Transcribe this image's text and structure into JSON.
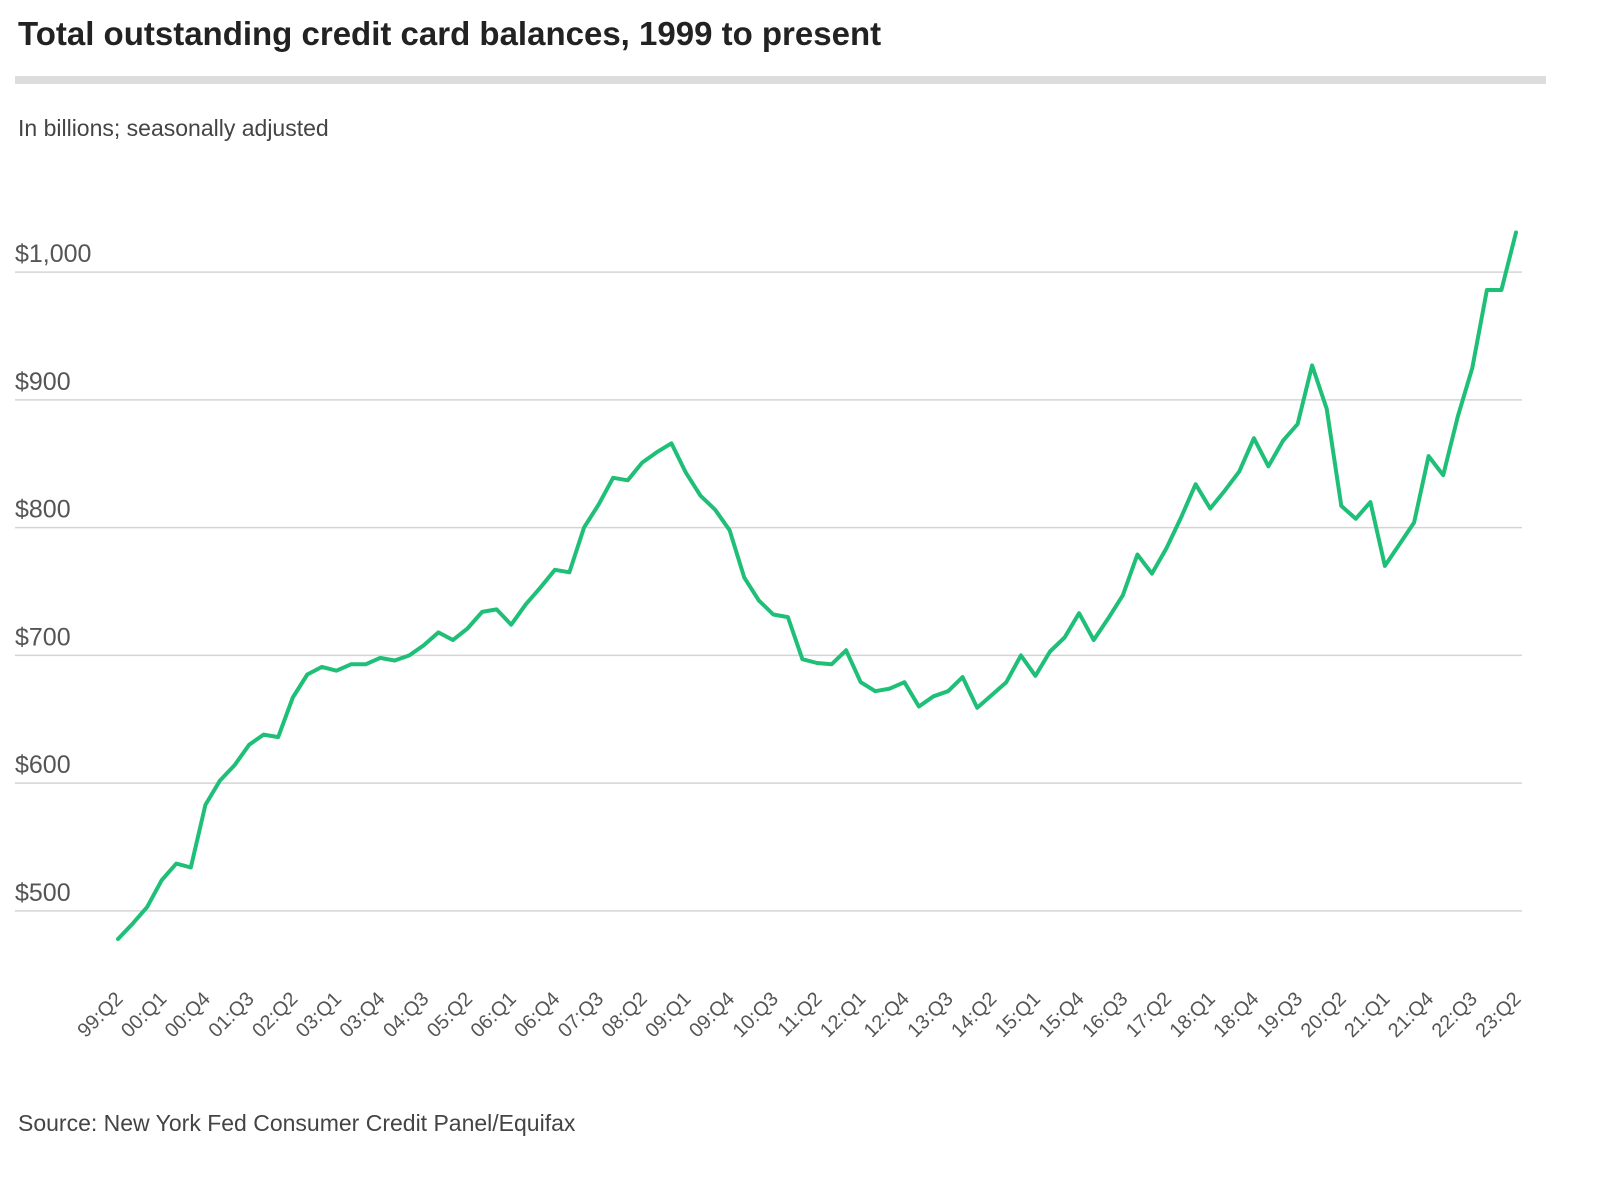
{
  "chart_data": {
    "type": "line",
    "title": "Total outstanding credit card balances, 1999 to present",
    "subtitle": "In billions; seasonally adjusted",
    "source": "Source: New York Fed Consumer Credit Panel/Equifax",
    "categories": [
      "99:Q2",
      null,
      null,
      "00:Q1",
      null,
      null,
      "00:Q4",
      null,
      null,
      "01:Q3",
      null,
      null,
      "02:Q2",
      null,
      null,
      "03:Q1",
      null,
      null,
      "03:Q4",
      null,
      null,
      "04:Q3",
      null,
      null,
      "05:Q2",
      null,
      null,
      "06:Q1",
      null,
      null,
      "06:Q4",
      null,
      null,
      "07:Q3",
      null,
      null,
      "08:Q2",
      null,
      null,
      "09:Q1",
      null,
      null,
      "09:Q4",
      null,
      null,
      "10:Q3",
      null,
      null,
      "11:Q2",
      null,
      null,
      "12:Q1",
      null,
      null,
      "12:Q4",
      null,
      null,
      "13:Q3",
      null,
      null,
      "14:Q2",
      null,
      null,
      "15:Q1",
      null,
      null,
      "15:Q4",
      null,
      null,
      "16:Q3",
      null,
      null,
      "17:Q2",
      null,
      null,
      "18:Q1",
      null,
      null,
      "18:Q4",
      null,
      null,
      "19:Q3",
      null,
      null,
      "20:Q2",
      null,
      null,
      "21:Q1",
      null,
      null,
      "21:Q4",
      null,
      null,
      "22:Q3",
      null,
      null,
      "23:Q2"
    ],
    "series": [
      {
        "color": "#1fbf78",
        "values": [
          478,
          490,
          503,
          524,
          537,
          534,
          583,
          602,
          614,
          630,
          638,
          636,
          667,
          685,
          691,
          688,
          693,
          693,
          698,
          696,
          700,
          708,
          718,
          712,
          721,
          734,
          736,
          724,
          740,
          753,
          767,
          765,
          800,
          818,
          839,
          837,
          851,
          859,
          866,
          843,
          825,
          814,
          798,
          761,
          743,
          732,
          730,
          697,
          694,
          693,
          704,
          679,
          672,
          674,
          679,
          660,
          668,
          672,
          683,
          659,
          669,
          679,
          700,
          684,
          703,
          714,
          733,
          712,
          729,
          747,
          779,
          764,
          784,
          808,
          834,
          815,
          829,
          844,
          870,
          848,
          868,
          881,
          927,
          893,
          817,
          807,
          820,
          770,
          787,
          804,
          856,
          841,
          887,
          925,
          986,
          986,
          1031
        ]
      }
    ],
    "ylim": [
      460,
      1040
    ],
    "yticks": [
      {
        "value": 500,
        "label": "$500"
      },
      {
        "value": 600,
        "label": "$600"
      },
      {
        "value": 700,
        "label": "$700"
      },
      {
        "value": 800,
        "label": "$800"
      },
      {
        "value": 900,
        "label": "$900"
      },
      {
        "value": 1000,
        "label": "$1,000"
      }
    ],
    "grid": true
  }
}
